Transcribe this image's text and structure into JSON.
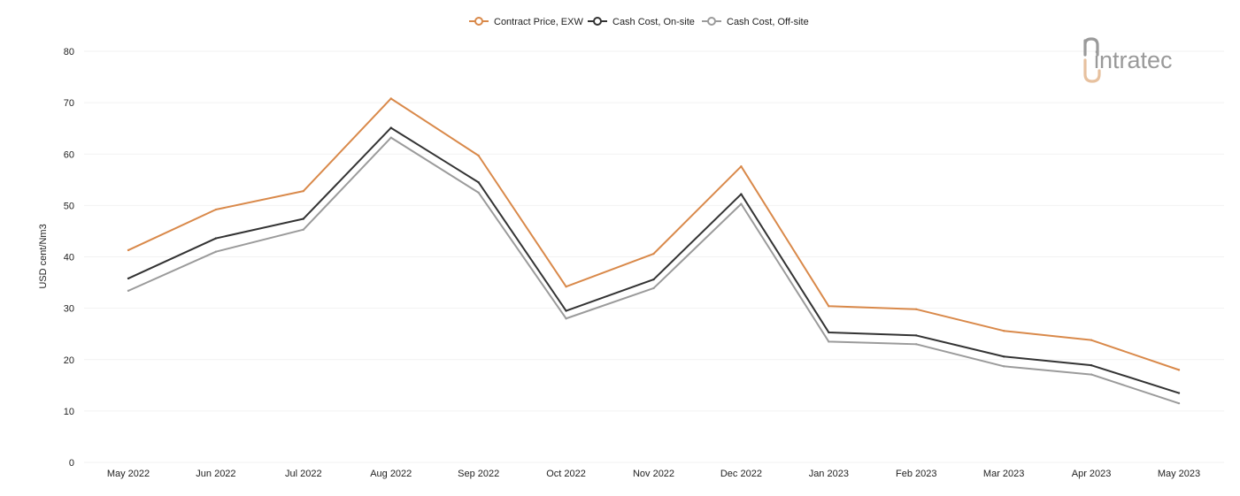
{
  "brand": {
    "logo_text": "intratec"
  },
  "chart_data": {
    "type": "line",
    "title": "",
    "xlabel": "",
    "ylabel": "USD cent/Nm3",
    "ylim": [
      0,
      80
    ],
    "yticks": [
      0,
      10,
      20,
      30,
      40,
      50,
      60,
      70,
      80
    ],
    "grid": true,
    "legend_position": "top-center",
    "categories": [
      "May 2022",
      "Jun 2022",
      "Jul 2022",
      "Aug 2022",
      "Sep 2022",
      "Oct 2022",
      "Nov 2022",
      "Dec 2022",
      "Jan 2023",
      "Feb 2023",
      "Mar 2023",
      "Apr 2023",
      "May 2023"
    ],
    "series": [
      {
        "name": "Contract Price, EXW",
        "color": "#d9894a",
        "values": [
          41.3,
          49.2,
          52.8,
          70.8,
          59.7,
          34.2,
          40.6,
          57.6,
          30.4,
          29.8,
          25.6,
          23.8,
          18.0
        ]
      },
      {
        "name": "Cash Cost, On-site",
        "color": "#333333",
        "values": [
          35.8,
          43.6,
          47.4,
          65.1,
          54.5,
          29.5,
          35.6,
          52.2,
          25.3,
          24.7,
          20.6,
          18.9,
          13.5
        ]
      },
      {
        "name": "Cash Cost, Off-site",
        "color": "#9b9b9b",
        "values": [
          33.4,
          41.0,
          45.3,
          63.2,
          52.5,
          28.0,
          33.9,
          50.3,
          23.5,
          23.0,
          18.7,
          17.1,
          11.5
        ]
      }
    ]
  }
}
